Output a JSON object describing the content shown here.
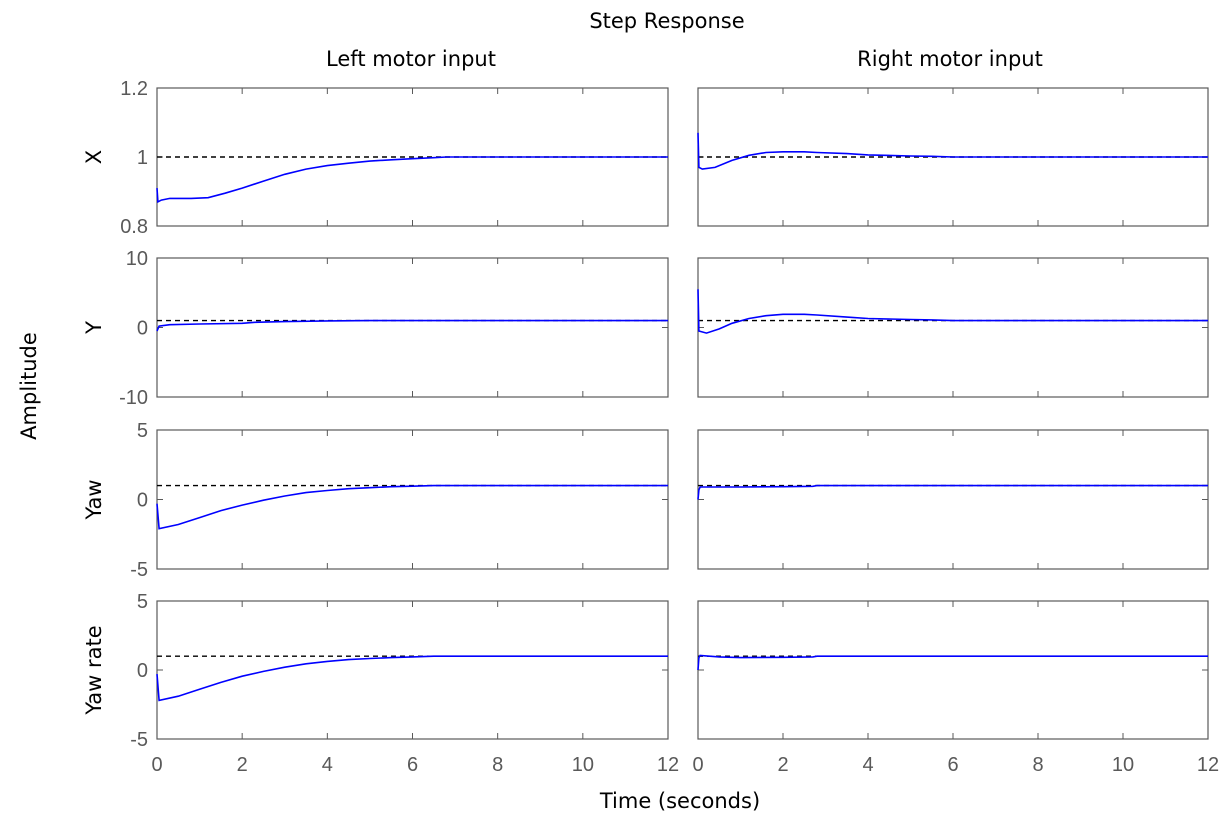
{
  "chart_data": {
    "type": "line",
    "title": "Step Response",
    "xlabel": "Time (seconds)",
    "ylabel": "Amplitude",
    "grid": false,
    "xlim": [
      0,
      12
    ],
    "xticks": [
      0,
      2,
      4,
      6,
      8,
      10,
      12
    ],
    "columns": [
      "Left motor input",
      "Right motor input"
    ],
    "rows": [
      {
        "name": "X",
        "ylim": [
          0.8,
          1.2
        ],
        "yticks": [
          0.8,
          1,
          1.2
        ],
        "steady_state": 1,
        "series": [
          {
            "input": "Left motor input",
            "x": [
              0,
              0.02,
              0.1,
              0.3,
              0.8,
              1.2,
              1.6,
              2,
              2.5,
              3,
              3.5,
              4,
              4.5,
              5,
              5.5,
              6,
              6.5,
              6.8,
              8,
              10,
              12
            ],
            "y": [
              0.91,
              0.87,
              0.875,
              0.88,
              0.88,
              0.882,
              0.895,
              0.91,
              0.93,
              0.95,
              0.965,
              0.975,
              0.982,
              0.988,
              0.992,
              0.995,
              0.998,
              1,
              1,
              1,
              1
            ]
          },
          {
            "input": "Right motor input",
            "x": [
              0,
              0.02,
              0.1,
              0.4,
              0.8,
              1.2,
              1.6,
              2,
              2.5,
              2.8,
              3.5,
              4,
              5,
              5.5,
              6,
              8,
              10,
              12
            ],
            "y": [
              1.07,
              0.97,
              0.965,
              0.97,
              0.99,
              1.005,
              1.013,
              1.015,
              1.015,
              1.013,
              1.01,
              1.006,
              1.003,
              1.002,
              1,
              1,
              1,
              1
            ]
          }
        ]
      },
      {
        "name": "Y",
        "ylim": [
          -10,
          10
        ],
        "yticks": [
          -10,
          0,
          10
        ],
        "steady_state": 1,
        "series": [
          {
            "input": "Left motor input",
            "x": [
              0,
              0.05,
              0.3,
              1,
              2,
              2.3,
              3,
              4,
              5,
              6,
              8,
              10,
              12
            ],
            "y": [
              -0.5,
              0.2,
              0.4,
              0.5,
              0.6,
              0.75,
              0.85,
              0.95,
              1,
              1,
              1,
              1,
              1
            ]
          },
          {
            "input": "Right motor input",
            "x": [
              0,
              0.02,
              0.2,
              0.5,
              0.8,
              1.2,
              1.6,
              2,
              2.5,
              2.8,
              3.5,
              4,
              5,
              5.5,
              6,
              8,
              10,
              12
            ],
            "y": [
              5.5,
              -0.5,
              -0.8,
              -0.2,
              0.6,
              1.3,
              1.7,
              1.9,
              1.9,
              1.8,
              1.5,
              1.3,
              1.15,
              1.1,
              1,
              1,
              1,
              1
            ]
          }
        ]
      },
      {
        "name": "Yaw",
        "ylim": [
          -5,
          5
        ],
        "yticks": [
          -5,
          0,
          5
        ],
        "steady_state": 1,
        "series": [
          {
            "input": "Left motor input",
            "x": [
              0,
              0.05,
              0.5,
              1,
              1.5,
              2,
              2.5,
              3,
              3.5,
              4,
              4.5,
              5,
              5.5,
              6,
              6.5,
              8,
              10,
              12
            ],
            "y": [
              -0.3,
              -2.1,
              -1.8,
              -1.3,
              -0.8,
              -0.4,
              -0.05,
              0.25,
              0.5,
              0.65,
              0.78,
              0.85,
              0.92,
              0.96,
              1,
              1,
              1,
              1
            ]
          },
          {
            "input": "Right motor input",
            "x": [
              0,
              0.02,
              0.05,
              0.5,
              1,
              2,
              2.7,
              2.8,
              4,
              6,
              8,
              10,
              12
            ],
            "y": [
              0,
              0.7,
              0.9,
              0.9,
              0.9,
              0.92,
              0.95,
              1,
              1,
              1,
              1,
              1,
              1
            ]
          }
        ]
      },
      {
        "name": "Yaw rate",
        "ylim": [
          -5,
          5
        ],
        "yticks": [
          -5,
          0,
          5
        ],
        "steady_state": 1,
        "series": [
          {
            "input": "Left motor input",
            "x": [
              0,
              0.05,
              0.5,
              1,
              1.5,
              2,
              2.5,
              3,
              3.5,
              4,
              4.5,
              5,
              5.5,
              6,
              6.5,
              8,
              10,
              12
            ],
            "y": [
              -0.3,
              -2.2,
              -1.9,
              -1.4,
              -0.9,
              -0.45,
              -0.1,
              0.2,
              0.45,
              0.62,
              0.75,
              0.83,
              0.9,
              0.95,
              1,
              1,
              1,
              1
            ]
          },
          {
            "input": "Right motor input",
            "x": [
              0,
              0.02,
              0.05,
              0.5,
              1,
              2,
              2.7,
              2.8,
              4,
              6,
              8,
              10,
              12
            ],
            "y": [
              0,
              0.9,
              1.05,
              0.95,
              0.9,
              0.92,
              0.95,
              1,
              1,
              1,
              1,
              1,
              1
            ]
          }
        ]
      }
    ],
    "colors": {
      "response": "#0000ff",
      "steady_state": "#000000",
      "frame": "#595959"
    }
  }
}
